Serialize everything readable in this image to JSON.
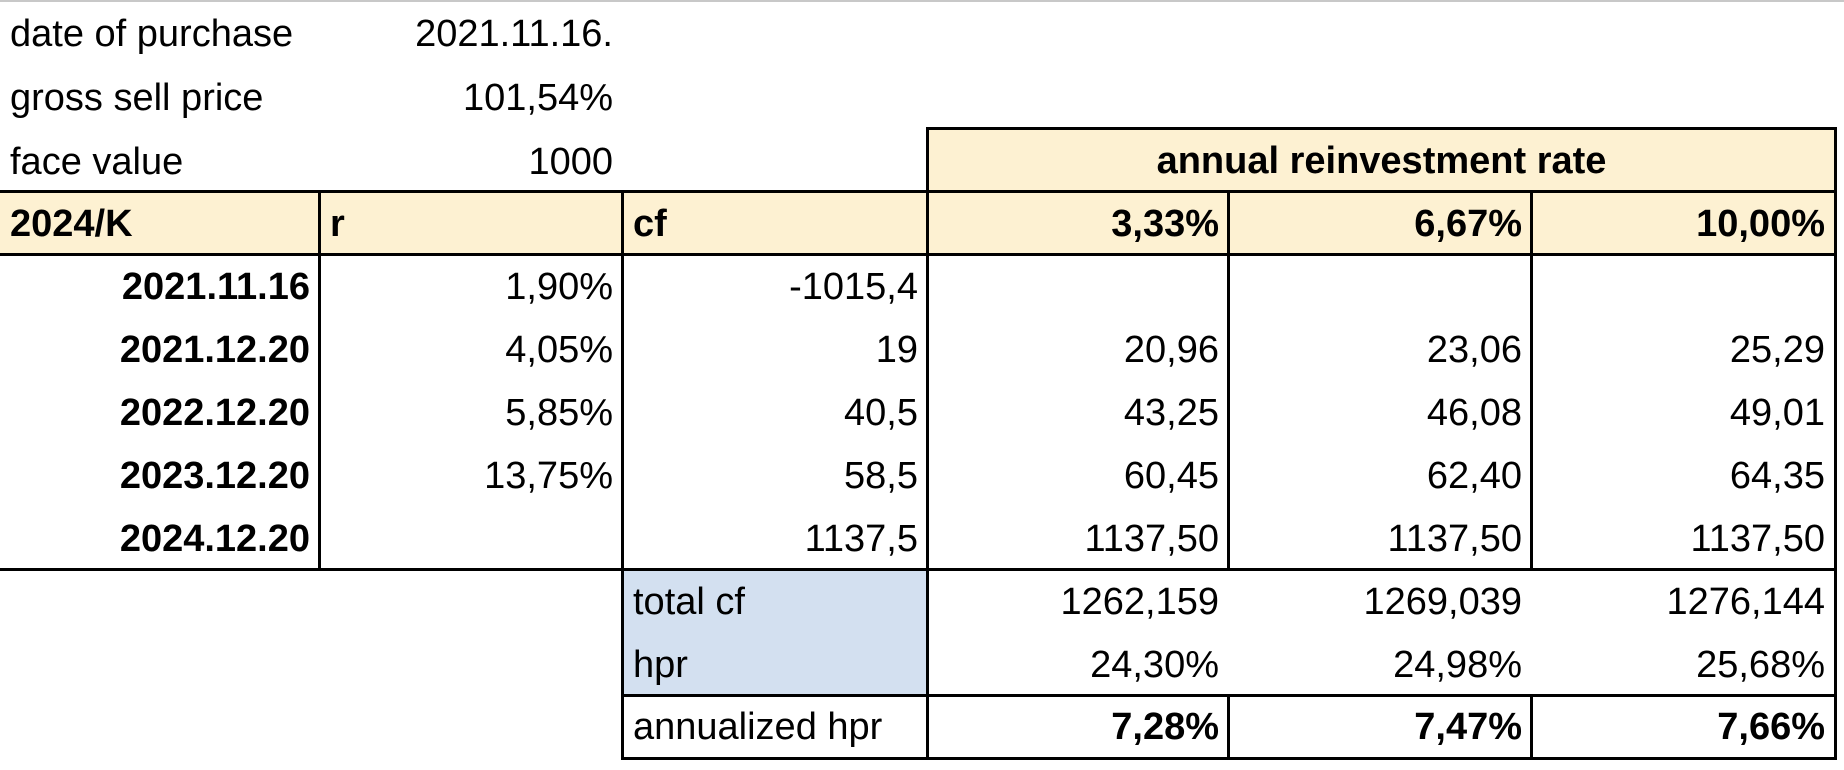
{
  "info": {
    "purchase_label": "date of purchase",
    "purchase_value": "2021.11.16.",
    "price_label": "gross sell price",
    "price_value": "101,54%",
    "face_label": "face value",
    "face_value": "1000"
  },
  "reinvestment_header": "annual reinvestment rate",
  "columns": {
    "bond": "2024/K",
    "r": "r",
    "cf": "cf",
    "rate1": "3,33%",
    "rate2": "6,67%",
    "rate3": "10,00%"
  },
  "rows": [
    {
      "date": "2021.11.16",
      "r": "1,90%",
      "cf": "-1015,4",
      "v1": "",
      "v2": "",
      "v3": ""
    },
    {
      "date": "2021.12.20",
      "r": "4,05%",
      "cf": "19",
      "v1": "20,96",
      "v2": "23,06",
      "v3": "25,29"
    },
    {
      "date": "2022.12.20",
      "r": "5,85%",
      "cf": "40,5",
      "v1": "43,25",
      "v2": "46,08",
      "v3": "49,01"
    },
    {
      "date": "2023.12.20",
      "r": "13,75%",
      "cf": "58,5",
      "v1": "60,45",
      "v2": "62,40",
      "v3": "64,35"
    },
    {
      "date": "2024.12.20",
      "r": "",
      "cf": "1137,5",
      "v1": "1137,50",
      "v2": "1137,50",
      "v3": "1137,50"
    }
  ],
  "summary": {
    "total_cf": {
      "label": "total cf",
      "v1": "1262,159",
      "v2": "1269,039",
      "v3": "1276,144"
    },
    "hpr": {
      "label": "hpr",
      "v1": "24,30%",
      "v2": "24,98%",
      "v3": "25,68%"
    },
    "annualized": {
      "label": "annualized hpr",
      "v1": "7,28%",
      "v2": "7,47%",
      "v3": "7,66%"
    }
  },
  "colors": {
    "header_fill": "#fdf1d2",
    "summary_label_fill": "#d3e0f0",
    "grid_line": "#000000"
  }
}
